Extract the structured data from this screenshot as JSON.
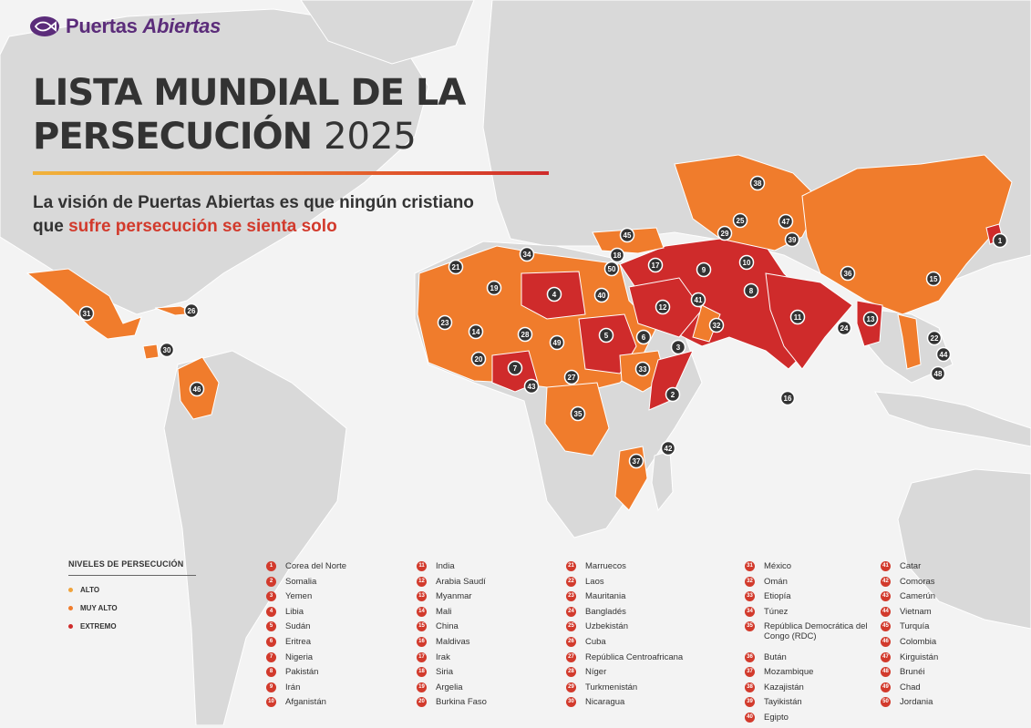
{
  "brand": {
    "name_a": "Puertas ",
    "name_b": "Abiertas"
  },
  "header": {
    "title_line1": "LISTA MUNDIAL DE LA",
    "title_line2": "PERSECUCIÓN",
    "title_year": "2025"
  },
  "subtitle": {
    "part1": "La visión de Puertas Abiertas es que ningún cristiano que ",
    "highlight": "sufre persecución se sienta solo"
  },
  "legend": {
    "title": "NIVELES DE PERSECUCIÓN",
    "items": [
      {
        "label": "ALTO",
        "color": "#f0a33b"
      },
      {
        "label": "MUY ALTO",
        "color": "#f07c2c"
      },
      {
        "label": "EXTREMO",
        "color": "#cf2b2b"
      }
    ]
  },
  "colors": {
    "land": "#d9d9d9",
    "sea": "#f3f3f3",
    "very_high": "#f07c2c",
    "extreme": "#cf2b2b",
    "marker": "#333333",
    "brand": "#5b2c7a"
  },
  "countries": [
    {
      "rank": 1,
      "name": "Corea del Norte",
      "level": "extreme"
    },
    {
      "rank": 2,
      "name": "Somalia",
      "level": "extreme"
    },
    {
      "rank": 3,
      "name": "Yemen",
      "level": "extreme"
    },
    {
      "rank": 4,
      "name": "Libia",
      "level": "extreme"
    },
    {
      "rank": 5,
      "name": "Sudán",
      "level": "extreme"
    },
    {
      "rank": 6,
      "name": "Eritrea",
      "level": "extreme"
    },
    {
      "rank": 7,
      "name": "Nigeria",
      "level": "extreme"
    },
    {
      "rank": 8,
      "name": "Pakistán",
      "level": "extreme"
    },
    {
      "rank": 9,
      "name": "Irán",
      "level": "extreme"
    },
    {
      "rank": 10,
      "name": "Afganistán",
      "level": "extreme"
    },
    {
      "rank": 11,
      "name": "India",
      "level": "extreme"
    },
    {
      "rank": 12,
      "name": "Arabia Saudí",
      "level": "extreme"
    },
    {
      "rank": 13,
      "name": "Myanmar",
      "level": "extreme"
    },
    {
      "rank": 14,
      "name": "Mali",
      "level": "very_high"
    },
    {
      "rank": 15,
      "name": "China",
      "level": "very_high"
    },
    {
      "rank": 16,
      "name": "Maldivas",
      "level": "very_high"
    },
    {
      "rank": 17,
      "name": "Irak",
      "level": "very_high"
    },
    {
      "rank": 18,
      "name": "Siria",
      "level": "very_high"
    },
    {
      "rank": 19,
      "name": "Argelia",
      "level": "very_high"
    },
    {
      "rank": 20,
      "name": "Burkina Faso",
      "level": "very_high"
    },
    {
      "rank": 21,
      "name": "Marruecos",
      "level": "very_high"
    },
    {
      "rank": 22,
      "name": "Laos",
      "level": "very_high"
    },
    {
      "rank": 23,
      "name": "Mauritania",
      "level": "very_high"
    },
    {
      "rank": 24,
      "name": "Bangladés",
      "level": "very_high"
    },
    {
      "rank": 25,
      "name": "Uzbekistán",
      "level": "very_high"
    },
    {
      "rank": 26,
      "name": "Cuba",
      "level": "very_high"
    },
    {
      "rank": 27,
      "name": "República Centroafricana",
      "level": "very_high"
    },
    {
      "rank": 28,
      "name": "Níger",
      "level": "very_high"
    },
    {
      "rank": 29,
      "name": "Turkmenistán",
      "level": "very_high"
    },
    {
      "rank": 30,
      "name": "Nicaragua",
      "level": "very_high"
    },
    {
      "rank": 31,
      "name": "México",
      "level": "very_high"
    },
    {
      "rank": 32,
      "name": "Omán",
      "level": "very_high"
    },
    {
      "rank": 33,
      "name": "Etiopía",
      "level": "very_high"
    },
    {
      "rank": 34,
      "name": "Túnez",
      "level": "very_high"
    },
    {
      "rank": 35,
      "name": "República Democrática del Congo (RDC)",
      "level": "very_high"
    },
    {
      "rank": 36,
      "name": "Bután",
      "level": "very_high"
    },
    {
      "rank": 37,
      "name": "Mozambique",
      "level": "very_high"
    },
    {
      "rank": 38,
      "name": "Kazajistán",
      "level": "very_high"
    },
    {
      "rank": 39,
      "name": "Tayikistán",
      "level": "very_high"
    },
    {
      "rank": 40,
      "name": "Egipto",
      "level": "very_high"
    },
    {
      "rank": 41,
      "name": "Catar",
      "level": "very_high"
    },
    {
      "rank": 42,
      "name": "Comoras",
      "level": "very_high"
    },
    {
      "rank": 43,
      "name": "Camerún",
      "level": "very_high"
    },
    {
      "rank": 44,
      "name": "Vietnam",
      "level": "very_high"
    },
    {
      "rank": 45,
      "name": "Turquía",
      "level": "very_high"
    },
    {
      "rank": 46,
      "name": "Colombia",
      "level": "very_high"
    },
    {
      "rank": 47,
      "name": "Kirguistán",
      "level": "very_high"
    },
    {
      "rank": 48,
      "name": "Brunéi",
      "level": "very_high"
    },
    {
      "rank": 49,
      "name": "Chad",
      "level": "very_high"
    },
    {
      "rank": 50,
      "name": "Jordania",
      "level": "very_high"
    }
  ]
}
